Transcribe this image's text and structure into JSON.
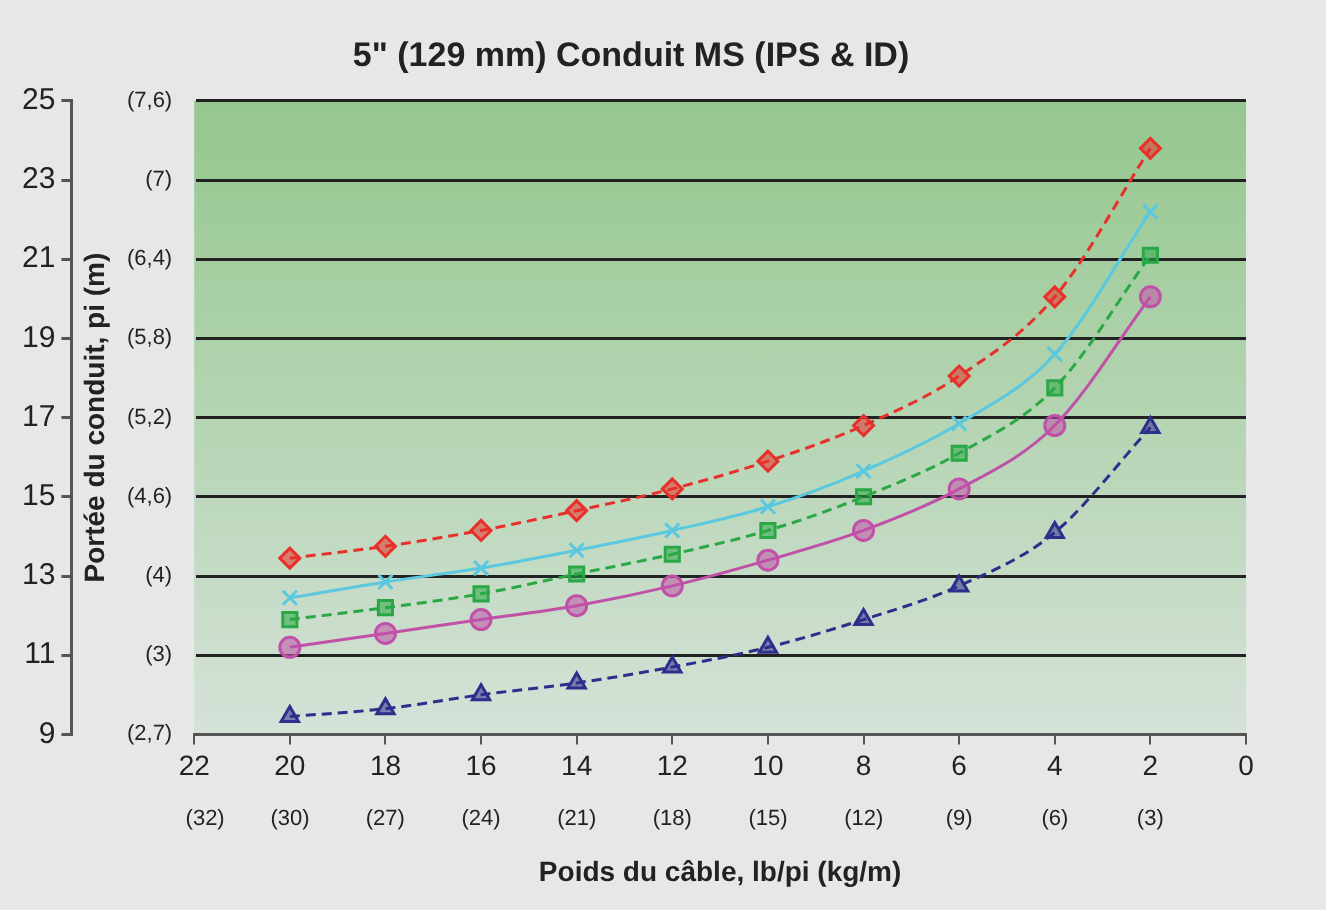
{
  "chart_data": {
    "type": "line",
    "title": "5\" (129 mm) Conduit MS (IPS & ID)",
    "xlabel": "Poids du câble, lb/pi (kg/m)",
    "ylabel": "Portée du conduit, pi (m)",
    "x": [
      20,
      18,
      16,
      14,
      12,
      10,
      8,
      6,
      4,
      2
    ],
    "xlim": [
      22,
      0
    ],
    "xticks": [
      22,
      20,
      18,
      16,
      14,
      12,
      10,
      8,
      6,
      4,
      2,
      0
    ],
    "x2lim": [
      32.74,
      0
    ],
    "x2ticks": [
      {
        "value": 32.4,
        "label": "(32)"
      },
      {
        "value": 29.76,
        "label": "(30)"
      },
      {
        "value": 26.79,
        "label": "(27)"
      },
      {
        "value": 23.81,
        "label": "(24)"
      },
      {
        "value": 20.83,
        "label": "(21)"
      },
      {
        "value": 17.86,
        "label": "(18)"
      },
      {
        "value": 14.88,
        "label": "(15)"
      },
      {
        "value": 11.9,
        "label": "(12)"
      },
      {
        "value": 8.93,
        "label": "(9)"
      },
      {
        "value": 5.95,
        "label": "(6)"
      },
      {
        "value": 2.98,
        "label": "(3)"
      }
    ],
    "ylim": [
      9,
      25
    ],
    "yticks": [
      9,
      11,
      13,
      15,
      17,
      19,
      21,
      23,
      25
    ],
    "y2lim": [
      2.74,
      7.62
    ],
    "y2ticks": [
      {
        "value": 2.74,
        "label": "(2,7)"
      },
      {
        "value": 3.35,
        "label": "(3)"
      },
      {
        "value": 3.96,
        "label": "(4)"
      },
      {
        "value": 4.57,
        "label": "(4,6)"
      },
      {
        "value": 5.18,
        "label": "(5,2)"
      },
      {
        "value": 5.79,
        "label": "(5,8)"
      },
      {
        "value": 6.4,
        "label": "(6,4)"
      },
      {
        "value": 7.01,
        "label": "(7)"
      },
      {
        "value": 7.62,
        "label": "(7,6)"
      }
    ],
    "grid": "y",
    "legend": false,
    "series": [
      {
        "color": "#e8302a",
        "marker": "diamond",
        "line_style": "dashed",
        "values": [
          13.45,
          13.75,
          14.15,
          14.65,
          15.2,
          15.9,
          16.8,
          18.05,
          20.05,
          23.8
        ]
      },
      {
        "color": "#5bc8e0",
        "marker": "cross",
        "line_style": "solid",
        "values": [
          12.45,
          12.85,
          13.2,
          13.65,
          14.15,
          14.75,
          15.65,
          16.85,
          18.6,
          22.2
        ]
      },
      {
        "color": "#2aa845",
        "marker": "square",
        "line_style": "dashed",
        "values": [
          11.9,
          12.2,
          12.55,
          13.05,
          13.55,
          14.15,
          15.0,
          16.1,
          17.75,
          21.1
        ]
      },
      {
        "color": "#c050a8",
        "marker": "circle",
        "line_style": "solid",
        "values": [
          11.2,
          11.55,
          11.9,
          12.25,
          12.75,
          13.4,
          14.15,
          15.2,
          16.8,
          20.05
        ]
      },
      {
        "color": "#2e2e8c",
        "marker": "triangle",
        "line_style": "dashed",
        "values": [
          9.45,
          9.65,
          10.0,
          10.3,
          10.7,
          11.2,
          11.9,
          12.75,
          14.1,
          16.75
        ]
      }
    ]
  }
}
